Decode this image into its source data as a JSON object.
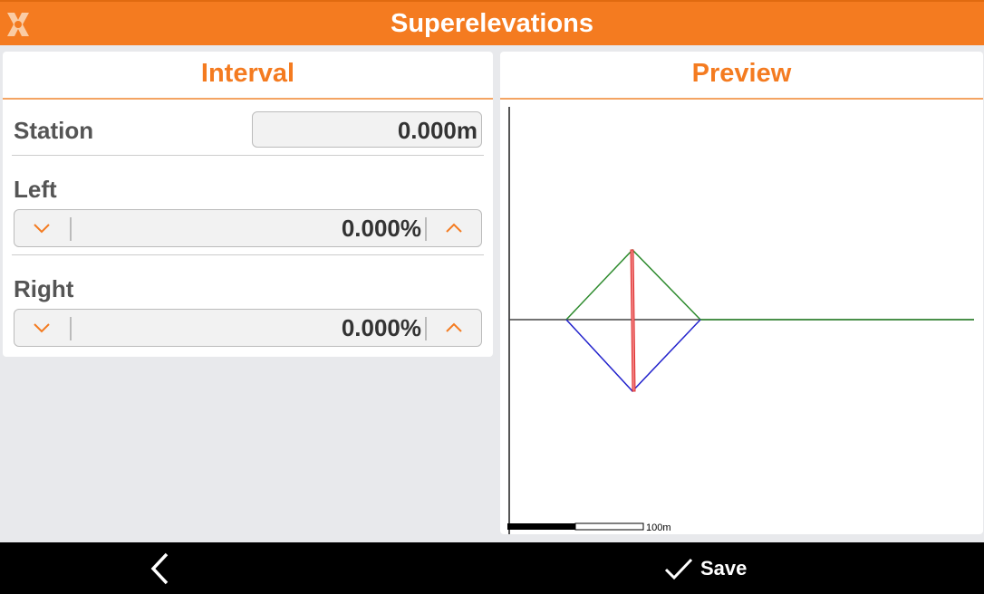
{
  "header": {
    "title": "Superelevations",
    "logo_icon": "app-logo-icon"
  },
  "interval": {
    "title": "Interval",
    "station": {
      "label": "Station",
      "value": "0.000m"
    },
    "left": {
      "label": "Left",
      "value": "0.000%"
    },
    "right": {
      "label": "Right",
      "value": "0.000%"
    }
  },
  "preview": {
    "title": "Preview",
    "scale_label": "100m",
    "colors": {
      "crown": "#2e8b2e",
      "left_side": "#2222cc",
      "center": "#e03030",
      "axis": "#444444"
    }
  },
  "footer": {
    "back_icon": "chevron-left-icon",
    "save_label": "Save",
    "save_icon": "check-icon"
  },
  "accent": "#f47b20"
}
